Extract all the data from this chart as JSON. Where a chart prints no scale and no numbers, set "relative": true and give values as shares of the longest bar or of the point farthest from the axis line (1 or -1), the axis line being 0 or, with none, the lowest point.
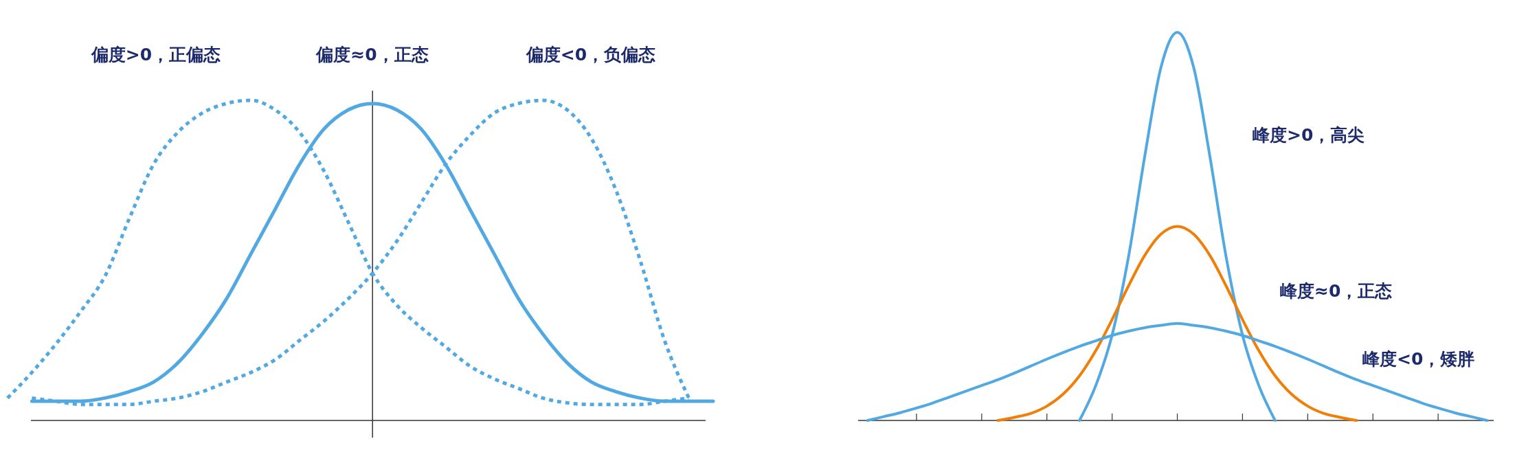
{
  "chart_data": [
    {
      "type": "line",
      "relative": true,
      "categories": [
        null,
        null,
        null,
        null,
        null,
        null,
        null,
        null,
        null,
        null,
        null,
        null,
        null,
        null,
        null,
        null,
        null,
        null,
        null,
        null,
        null,
        null,
        null,
        null,
        null,
        null,
        null,
        null,
        null,
        null
      ],
      "series": [
        {
          "color": "#52a9e2",
          "line_style": "dotted",
          "values": [
            0.07,
            0.15,
            0.24,
            0.34,
            0.45,
            0.63,
            0.8,
            0.9,
            0.96,
            0.99,
            1,
            0.97,
            0.9,
            0.78,
            0.62,
            0.46,
            0.36,
            0.29,
            0.23,
            0.17,
            0.13,
            0.1,
            0.07,
            0.055,
            0.05,
            0.05,
            0.05,
            0.06,
            0.07,
            null
          ]
        },
        {
          "color": "#52a9e2",
          "line_style": "solid",
          "values": [
            null,
            0.06,
            0.06,
            0.06,
            0.07,
            0.09,
            0.12,
            0.18,
            0.27,
            0.38,
            0.52,
            0.66,
            0.8,
            0.91,
            0.97,
            0.99,
            0.97,
            0.91,
            0.8,
            0.66,
            0.52,
            0.38,
            0.27,
            0.18,
            0.12,
            0.09,
            0.07,
            0.06,
            0.06,
            0.06
          ]
        },
        {
          "color": "#52a9e2",
          "line_style": "dotted",
          "values": [
            null,
            0.07,
            0.06,
            0.05,
            0.05,
            0.05,
            0.06,
            0.07,
            0.09,
            0.12,
            0.15,
            0.19,
            0.25,
            0.31,
            0.38,
            0.46,
            0.56,
            0.68,
            0.8,
            0.89,
            0.96,
            0.99,
            1,
            0.97,
            0.88,
            0.72,
            0.5,
            0.25,
            0.07,
            null
          ]
        }
      ],
      "annotations": [
        "偏度>0，正偏态",
        "偏度≈0，正态",
        "偏度<0，负偏态"
      ]
    },
    {
      "type": "line",
      "relative": true,
      "categories": [
        null,
        null,
        null,
        null,
        null,
        null,
        null,
        null,
        null,
        null,
        null,
        null,
        null,
        null,
        null,
        null,
        null,
        null,
        null,
        null,
        null,
        null,
        null,
        null,
        null,
        null,
        null,
        null,
        null,
        null,
        null,
        null,
        null,
        null,
        null,
        null,
        null,
        null,
        null,
        null,
        null
      ],
      "series": [
        {
          "color": "#52a9e2",
          "line_style": "solid",
          "values": [
            null,
            null,
            null,
            null,
            null,
            null,
            null,
            null,
            null,
            null,
            null,
            null,
            null,
            null,
            0,
            0.09,
            0.22,
            0.42,
            0.68,
            0.91,
            1,
            0.91,
            0.68,
            0.42,
            0.22,
            0.09,
            0,
            null,
            null,
            null,
            null,
            null,
            null,
            null,
            null,
            null,
            null,
            null,
            null,
            null,
            null
          ]
        },
        {
          "color": "#f07f09",
          "line_style": "solid",
          "values": [
            null,
            null,
            null,
            null,
            null,
            null,
            null,
            null,
            null,
            0,
            0.008,
            0.018,
            0.037,
            0.068,
            0.115,
            0.18,
            0.26,
            0.346,
            0.425,
            0.48,
            0.5,
            0.48,
            0.425,
            0.346,
            0.26,
            0.18,
            0.115,
            0.068,
            0.037,
            0.018,
            0.008,
            0,
            null,
            null,
            null,
            null,
            null,
            null,
            null,
            null,
            null
          ]
        },
        {
          "color": "#52a9e2",
          "line_style": "solid",
          "values": [
            null,
            0,
            0.01,
            0.02,
            0.032,
            0.045,
            0.06,
            0.075,
            0.09,
            0.105,
            0.122,
            0.14,
            0.158,
            0.175,
            0.191,
            0.205,
            0.219,
            0.23,
            0.239,
            0.245,
            0.25,
            0.245,
            0.239,
            0.23,
            0.219,
            0.205,
            0.191,
            0.175,
            0.158,
            0.14,
            0.122,
            0.105,
            0.09,
            0.075,
            0.06,
            0.045,
            0.032,
            0.02,
            0.01,
            0,
            null
          ]
        }
      ],
      "annotations": [
        "峰度>0，高尖",
        "峰度≈0，正态",
        "峰度<0，矮胖"
      ]
    }
  ]
}
